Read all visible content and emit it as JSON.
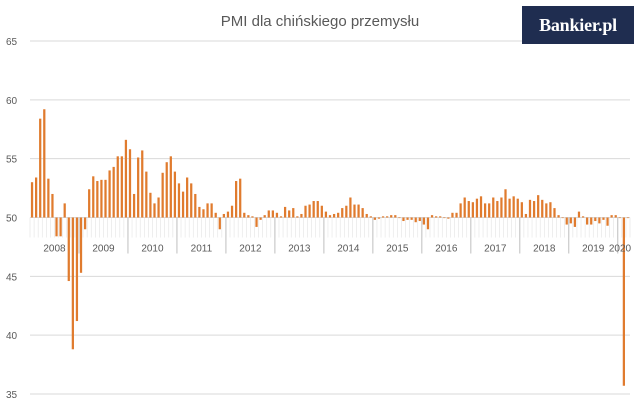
{
  "brand": {
    "logo_text": "Bankier.pl",
    "bg_color": "#1f2d50",
    "text_color": "#ffffff"
  },
  "colors": {
    "bar": "#e07b2e",
    "gridline": "#d9d9d9",
    "axis_text": "#595959",
    "separator": "#bfbfbf"
  },
  "chart_data": {
    "type": "bar",
    "title": "PMI dla chińskiego przemysłu",
    "xlabel": "",
    "ylabel": "",
    "baseline": 50,
    "ylim": [
      35,
      65
    ],
    "yticks": [
      35,
      40,
      45,
      50,
      55,
      60,
      65
    ],
    "grid": true,
    "legend": "none",
    "year_labels": [
      "2008",
      "2009",
      "2010",
      "2011",
      "2012",
      "2013",
      "2014",
      "2015",
      "2016",
      "2017",
      "2018",
      "2019",
      "2020"
    ],
    "year_months": [
      12,
      12,
      12,
      12,
      12,
      12,
      12,
      12,
      12,
      12,
      12,
      12,
      3
    ],
    "values": [
      53.0,
      53.4,
      58.4,
      59.2,
      53.3,
      52.0,
      48.4,
      48.4,
      51.2,
      44.6,
      38.8,
      41.2,
      45.3,
      49.0,
      52.4,
      53.5,
      53.1,
      53.2,
      53.2,
      54.0,
      54.3,
      55.2,
      55.2,
      56.6,
      55.8,
      52.0,
      55.1,
      55.7,
      53.9,
      52.1,
      51.2,
      51.7,
      53.8,
      54.7,
      55.2,
      53.9,
      52.9,
      52.2,
      53.4,
      52.9,
      52.0,
      50.9,
      50.7,
      51.2,
      51.2,
      50.4,
      49.0,
      50.3,
      50.5,
      51.0,
      53.1,
      53.3,
      50.4,
      50.2,
      50.1,
      49.2,
      49.8,
      50.2,
      50.6,
      50.6,
      50.4,
      50.1,
      50.9,
      50.6,
      50.8,
      50.1,
      50.3,
      51.0,
      51.1,
      51.4,
      51.4,
      51.0,
      50.5,
      50.2,
      50.3,
      50.4,
      50.8,
      51.0,
      51.7,
      51.1,
      51.1,
      50.8,
      50.3,
      50.1,
      49.8,
      49.9,
      50.1,
      50.1,
      50.2,
      50.2,
      50.0,
      49.7,
      49.8,
      49.8,
      49.6,
      49.7,
      49.4,
      49.0,
      50.2,
      50.1,
      50.1,
      50.0,
      49.9,
      50.4,
      50.4,
      51.2,
      51.7,
      51.4,
      51.3,
      51.6,
      51.8,
      51.2,
      51.2,
      51.7,
      51.4,
      51.7,
      52.4,
      51.6,
      51.8,
      51.6,
      51.3,
      50.3,
      51.5,
      51.4,
      51.9,
      51.5,
      51.2,
      51.3,
      50.8,
      50.2,
      50.0,
      49.4,
      49.5,
      49.2,
      50.5,
      50.1,
      49.4,
      49.4,
      49.7,
      49.5,
      49.8,
      49.3,
      50.2,
      50.2,
      50.0,
      35.7,
      50.0
    ]
  }
}
